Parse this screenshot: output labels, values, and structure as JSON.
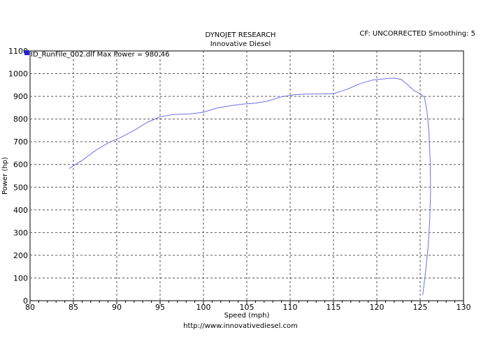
{
  "header": {
    "title": "DYNOJET RESEARCH",
    "subtitle": "Innovative Diesel",
    "correction": "CF: UNCORRECTED  Smoothing: 5"
  },
  "footer": {
    "url": "http://www.innovativediesel.com"
  },
  "chart_data": {
    "type": "line",
    "xlabel": "Speed (mph)",
    "ylabel": "Power (hp)",
    "xlim": [
      80,
      130
    ],
    "ylim": [
      0,
      1100
    ],
    "xticks": [
      80,
      85,
      90,
      95,
      100,
      105,
      110,
      115,
      120,
      125,
      130
    ],
    "yticks": [
      0,
      100,
      200,
      300,
      400,
      500,
      600,
      700,
      800,
      900,
      1000,
      1100
    ],
    "grid": true,
    "legend_position": "top-left",
    "line_color": "#6f6fe8",
    "legend_color": "#2222dd",
    "series": [
      {
        "name": "ID_RunFile_002.dlf Max Power = 980.46",
        "points": [
          [
            84.5,
            582
          ],
          [
            86,
            618
          ],
          [
            87.5,
            660
          ],
          [
            89,
            695
          ],
          [
            90.5,
            720
          ],
          [
            92,
            750
          ],
          [
            93.5,
            785
          ],
          [
            95,
            810
          ],
          [
            96.5,
            820
          ],
          [
            98.5,
            823
          ],
          [
            100,
            830
          ],
          [
            101.5,
            848
          ],
          [
            103,
            858
          ],
          [
            104.5,
            866
          ],
          [
            106,
            870
          ],
          [
            107.5,
            880
          ],
          [
            109,
            898
          ],
          [
            110.5,
            907
          ],
          [
            112,
            910
          ],
          [
            113.5,
            910
          ],
          [
            115,
            912
          ],
          [
            116.5,
            930
          ],
          [
            118,
            955
          ],
          [
            119.5,
            972
          ],
          [
            121,
            978
          ],
          [
            122,
            980.46
          ],
          [
            122.8,
            975
          ],
          [
            123.6,
            950
          ],
          [
            124.3,
            925
          ],
          [
            125,
            912
          ],
          [
            125.5,
            895
          ],
          [
            125.8,
            830
          ],
          [
            126,
            750
          ],
          [
            126.15,
            620
          ],
          [
            126.2,
            480
          ],
          [
            126.1,
            350
          ],
          [
            125.9,
            230
          ],
          [
            125.6,
            120
          ],
          [
            125.3,
            25
          ]
        ]
      }
    ]
  }
}
